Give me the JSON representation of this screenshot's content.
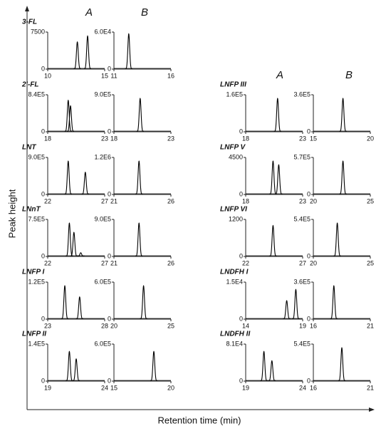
{
  "figure": {
    "y_label": "Peak height",
    "x_label": "Retention time (min)",
    "column_headers": [
      "A",
      "B",
      "A",
      "B"
    ]
  },
  "chart_data": [
    {
      "type": "line",
      "title": "3-FL",
      "xlim": [
        10,
        15
      ],
      "xticks": [
        10,
        15
      ],
      "ylim": [
        0,
        7500
      ],
      "yticks": [
        0,
        7500
      ],
      "x": [
        12.6,
        13.5
      ],
      "values": [
        5500,
        6700
      ],
      "color": "#000000"
    },
    {
      "type": "line",
      "xlim": [
        11,
        16
      ],
      "xticks": [
        11,
        16
      ],
      "ylim": [
        0,
        60000
      ],
      "yticks": [
        0,
        {
          "value": 60000,
          "label": "6.0E4"
        }
      ],
      "x": [
        12.3
      ],
      "values": [
        57000
      ],
      "color": "#000000"
    },
    {
      "type": "line",
      "title": "2'-FL",
      "xlim": [
        18,
        23
      ],
      "xticks": [
        18,
        23
      ],
      "ylim": [
        0,
        840000
      ],
      "yticks": [
        0,
        {
          "value": 840000,
          "label": "8.4E5"
        }
      ],
      "x": [
        19.8,
        20.0
      ],
      "values": [
        714000,
        588000
      ],
      "color": "#000000"
    },
    {
      "type": "line",
      "xlim": [
        18,
        23
      ],
      "xticks": [
        18,
        23
      ],
      "ylim": [
        0,
        900000
      ],
      "yticks": [
        0,
        {
          "value": 900000,
          "label": "9.0E5"
        }
      ],
      "x": [
        20.3
      ],
      "values": [
        810000
      ],
      "color": "#000000"
    },
    {
      "type": "line",
      "title": "LNT",
      "xlim": [
        22,
        27
      ],
      "xticks": [
        22,
        27
      ],
      "ylim": [
        0,
        900000
      ],
      "yticks": [
        0,
        {
          "value": 900000,
          "label": "9.0E5"
        }
      ],
      "x": [
        23.8,
        25.3
      ],
      "values": [
        810000,
        540000
      ],
      "color": "#000000"
    },
    {
      "type": "line",
      "xlim": [
        21,
        26
      ],
      "xticks": [
        21,
        26
      ],
      "ylim": [
        0,
        1200000
      ],
      "yticks": [
        0,
        {
          "value": 1200000,
          "label": "1.2E6"
        }
      ],
      "x": [
        23.2
      ],
      "values": [
        1080000
      ],
      "color": "#000000"
    },
    {
      "type": "line",
      "title": "LNnT",
      "xlim": [
        22,
        27
      ],
      "xticks": [
        22,
        27
      ],
      "ylim": [
        0,
        750000
      ],
      "yticks": [
        0,
        {
          "value": 750000,
          "label": "7.5E5"
        }
      ],
      "x": [
        23.9,
        24.3,
        24.9
      ],
      "values": [
        675000,
        487500,
        75000
      ],
      "color": "#000000"
    },
    {
      "type": "line",
      "xlim": [
        21,
        26
      ],
      "xticks": [
        21,
        26
      ],
      "ylim": [
        0,
        900000
      ],
      "yticks": [
        0,
        {
          "value": 900000,
          "label": "9.0E5"
        }
      ],
      "x": [
        23.2
      ],
      "values": [
        810000
      ],
      "color": "#000000"
    },
    {
      "type": "line",
      "title": "LNFP I",
      "xlim": [
        23,
        28
      ],
      "xticks": [
        23,
        28
      ],
      "ylim": [
        0,
        120000
      ],
      "yticks": [
        0,
        {
          "value": 120000,
          "label": "1.2E5"
        }
      ],
      "x": [
        24.5,
        25.8
      ],
      "values": [
        108000,
        72000
      ],
      "color": "#000000"
    },
    {
      "type": "line",
      "xlim": [
        20,
        25
      ],
      "xticks": [
        20,
        25
      ],
      "ylim": [
        0,
        600000
      ],
      "yticks": [
        0,
        {
          "value": 600000,
          "label": "6.0E5"
        }
      ],
      "x": [
        22.6
      ],
      "values": [
        540000
      ],
      "color": "#000000"
    },
    {
      "type": "line",
      "title": "LNFP II",
      "xlim": [
        19,
        24
      ],
      "xticks": [
        19,
        24
      ],
      "ylim": [
        0,
        140000
      ],
      "yticks": [
        0,
        {
          "value": 140000,
          "label": "1.4E5"
        }
      ],
      "x": [
        20.9,
        21.5
      ],
      "values": [
        112000,
        84000
      ],
      "color": "#000000"
    },
    {
      "type": "line",
      "xlim": [
        15,
        20
      ],
      "xticks": [
        15,
        20
      ],
      "ylim": [
        0,
        600000
      ],
      "yticks": [
        0,
        {
          "value": 600000,
          "label": "6.0E5"
        }
      ],
      "x": [
        18.5
      ],
      "values": [
        480000
      ],
      "color": "#000000"
    },
    {
      "type": "line",
      "title": "LNFP III",
      "xlim": [
        18,
        23
      ],
      "xticks": [
        18,
        23
      ],
      "ylim": [
        0,
        160000
      ],
      "yticks": [
        0,
        {
          "value": 160000,
          "label": "1.6E5"
        }
      ],
      "x": [
        20.8
      ],
      "values": [
        144000
      ],
      "color": "#000000"
    },
    {
      "type": "line",
      "xlim": [
        15,
        20
      ],
      "xticks": [
        15,
        20
      ],
      "ylim": [
        0,
        360000
      ],
      "yticks": [
        0,
        {
          "value": 360000,
          "label": "3.6E5"
        }
      ],
      "x": [
        17.6
      ],
      "values": [
        324000
      ],
      "color": "#000000"
    },
    {
      "type": "line",
      "title": "LNFP V",
      "xlim": [
        18,
        23
      ],
      "xticks": [
        18,
        23
      ],
      "ylim": [
        0,
        4500
      ],
      "yticks": [
        0,
        4500
      ],
      "x": [
        20.4,
        20.9
      ],
      "values": [
        4050,
        3600
      ],
      "color": "#000000"
    },
    {
      "type": "line",
      "xlim": [
        20,
        25
      ],
      "xticks": [
        20,
        25
      ],
      "ylim": [
        0,
        570000
      ],
      "yticks": [
        0,
        {
          "value": 570000,
          "label": "5.7E5"
        }
      ],
      "x": [
        22.6
      ],
      "values": [
        513000
      ],
      "color": "#000000"
    },
    {
      "type": "line",
      "title": "LNFP VI",
      "xlim": [
        22,
        27
      ],
      "xticks": [
        22,
        27
      ],
      "ylim": [
        0,
        1200
      ],
      "yticks": [
        0,
        1200
      ],
      "x": [
        24.4
      ],
      "values": [
        1000
      ],
      "color": "#000000"
    },
    {
      "type": "line",
      "xlim": [
        20,
        25
      ],
      "xticks": [
        20,
        25
      ],
      "ylim": [
        0,
        540000
      ],
      "yticks": [
        0,
        {
          "value": 540000,
          "label": "5.4E5"
        }
      ],
      "x": [
        22.1
      ],
      "values": [
        486000
      ],
      "color": "#000000"
    },
    {
      "type": "line",
      "title": "LNDFH I",
      "xlim": [
        14,
        19
      ],
      "xticks": [
        14,
        19
      ],
      "ylim": [
        0,
        15000
      ],
      "yticks": [
        0,
        {
          "value": 15000,
          "label": "1.5E4"
        }
      ],
      "x": [
        17.6,
        18.4
      ],
      "values": [
        7500,
        12000
      ],
      "color": "#000000"
    },
    {
      "type": "line",
      "xlim": [
        16,
        21
      ],
      "xticks": [
        16,
        21
      ],
      "ylim": [
        0,
        360000
      ],
      "yticks": [
        0,
        {
          "value": 360000,
          "label": "3.6E5"
        }
      ],
      "x": [
        17.8
      ],
      "values": [
        324000
      ],
      "color": "#000000"
    },
    {
      "type": "line",
      "title": "LNDFH II",
      "xlim": [
        19,
        24
      ],
      "xticks": [
        19,
        24
      ],
      "ylim": [
        0,
        81000
      ],
      "yticks": [
        0,
        {
          "value": 81000,
          "label": "8.1E4"
        }
      ],
      "x": [
        20.6,
        21.3
      ],
      "values": [
        64800,
        44550
      ],
      "color": "#000000"
    },
    {
      "type": "line",
      "xlim": [
        16,
        21
      ],
      "xticks": [
        16,
        21
      ],
      "ylim": [
        0,
        540000
      ],
      "yticks": [
        0,
        {
          "value": 540000,
          "label": "5.4E5"
        }
      ],
      "x": [
        18.5
      ],
      "values": [
        486000
      ],
      "color": "#000000"
    }
  ]
}
